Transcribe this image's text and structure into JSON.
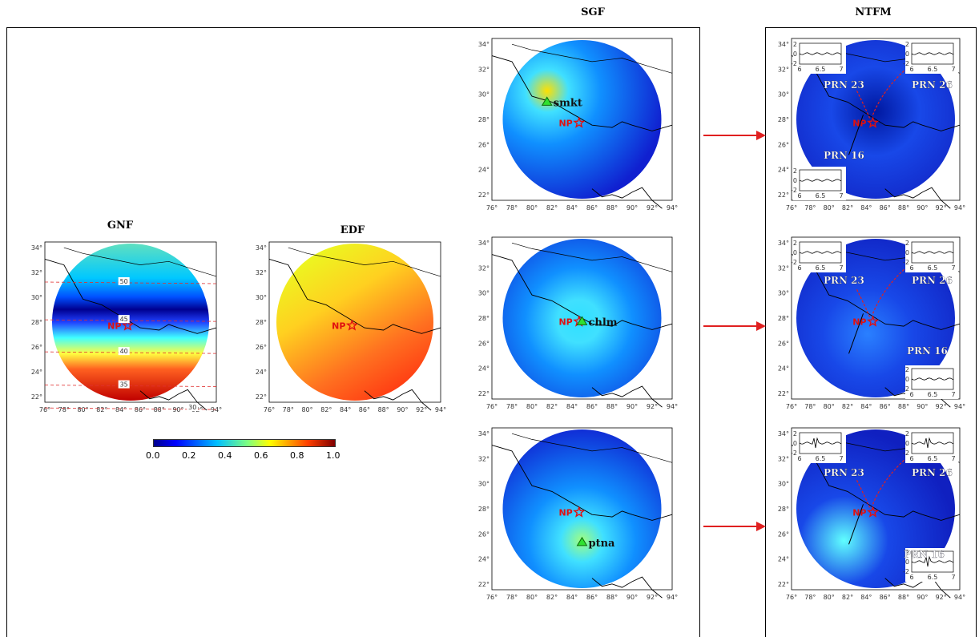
{
  "titles": {
    "gnf": "GNF",
    "edf": "EDF",
    "sgf": "SGF",
    "ntfm": "NTFM"
  },
  "axes": {
    "lon_ticks": [
      "76°",
      "78°",
      "80°",
      "82°",
      "84°",
      "86°",
      "88°",
      "90°",
      "92°",
      "94°"
    ],
    "lat_ticks": [
      "34°",
      "32°",
      "30°",
      "28°",
      "26°",
      "24°",
      "22°"
    ]
  },
  "epicenter_label": "NP",
  "gnf_contours": [
    "50",
    "45",
    "40",
    "35",
    "30"
  ],
  "stations": {
    "top": "smkt",
    "middle": "chlm",
    "bottom": "ptna"
  },
  "prn": {
    "p23": "PRN 23",
    "p26": "PRN 26",
    "p16": "PRN 16"
  },
  "inset": {
    "y_top": "2",
    "y_mid": "0",
    "y_bot": "-2",
    "x_ticks": [
      "6",
      "6.5",
      "7"
    ]
  },
  "colorbar": {
    "ticks": [
      "0.0",
      "0.2",
      "0.4",
      "0.6",
      "0.8",
      "1.0"
    ],
    "colors": [
      "#00008f",
      "#0000ff",
      "#00ffff",
      "#ffff00",
      "#ff0000",
      "#800000"
    ]
  }
}
